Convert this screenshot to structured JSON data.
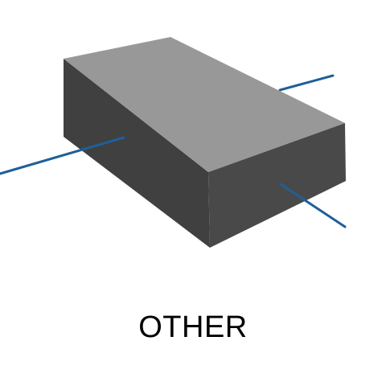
{
  "caption": "OTHER",
  "figure": {
    "subject": "rectangular-block-with-wire-leads",
    "colors": {
      "top_face": "#989898",
      "front_face": "#494949",
      "left_face": "#404040",
      "lead": "#1f5f99"
    }
  }
}
